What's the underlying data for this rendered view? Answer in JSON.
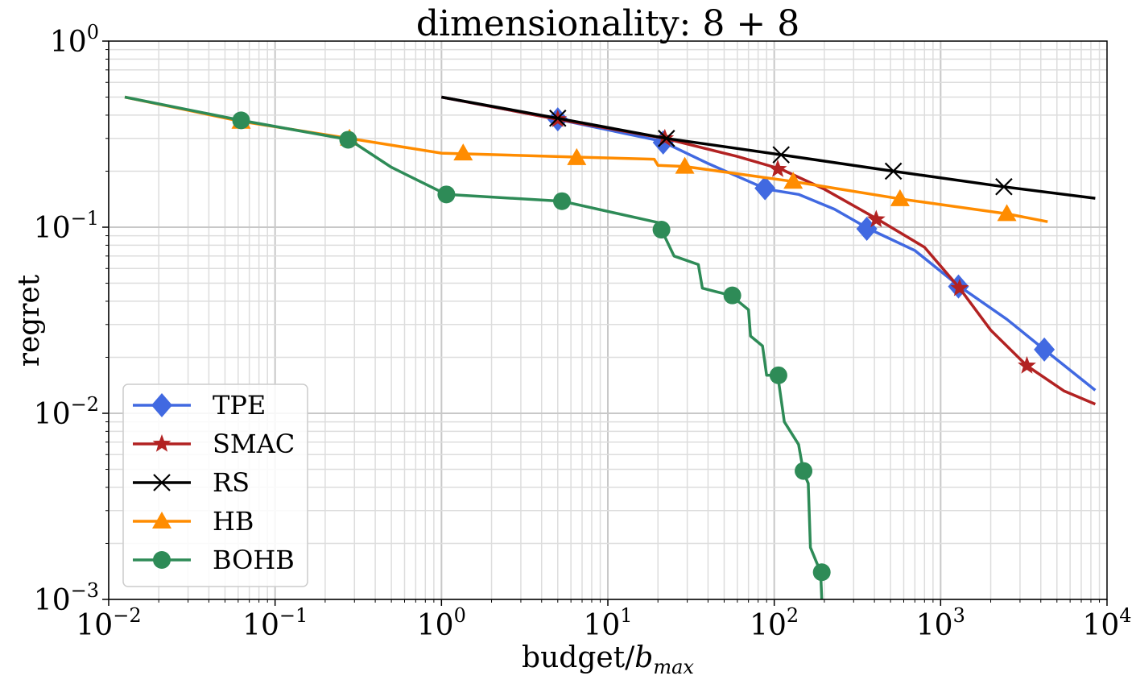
{
  "chart_data": {
    "type": "line",
    "title": "dimensionality: 8 + 8",
    "xlabel": "budget/",
    "xlabel_sub": "max",
    "xlabel_var": "b",
    "ylabel": "regret",
    "xscale": "log",
    "yscale": "log",
    "xlim": [
      0.01,
      10000
    ],
    "ylim": [
      0.001,
      1
    ],
    "x_ticks": [
      {
        "base": "10",
        "exp": "−2"
      },
      {
        "base": "10",
        "exp": "−1"
      },
      {
        "base": "10",
        "exp": "0"
      },
      {
        "base": "10",
        "exp": "1"
      },
      {
        "base": "10",
        "exp": "2"
      },
      {
        "base": "10",
        "exp": "3"
      },
      {
        "base": "10",
        "exp": "4"
      }
    ],
    "y_ticks": [
      {
        "base": "10",
        "exp": "−3"
      },
      {
        "base": "10",
        "exp": "−2"
      },
      {
        "base": "10",
        "exp": "−1"
      },
      {
        "base": "10",
        "exp": "0"
      }
    ],
    "grid": true,
    "legend_position": "lower-left",
    "series": [
      {
        "name": "TPE",
        "color": "#4169e1",
        "marker": "diamond",
        "x": [
          1,
          5,
          21,
          40,
          90,
          140,
          230,
          370,
          700,
          1300,
          2500,
          4200,
          8500
        ],
        "y": [
          0.5,
          0.38,
          0.29,
          0.22,
          0.16,
          0.15,
          0.125,
          0.098,
          0.075,
          0.048,
          0.032,
          0.022,
          0.0133
        ],
        "markers_x": [
          5,
          21.5,
          88,
          360,
          1280,
          4200
        ],
        "markers_y": [
          0.38,
          0.285,
          0.162,
          0.098,
          0.048,
          0.022
        ]
      },
      {
        "name": "SMAC",
        "color": "#b22222",
        "marker": "star",
        "x": [
          1,
          5,
          22,
          60,
          110,
          200,
          420,
          800,
          1300,
          2000,
          3300,
          5500,
          8500
        ],
        "y": [
          0.5,
          0.38,
          0.3,
          0.24,
          0.205,
          0.16,
          0.11,
          0.078,
          0.047,
          0.028,
          0.018,
          0.0132,
          0.0112
        ],
        "markers_x": [
          5,
          22,
          105,
          410,
          1300,
          3300
        ],
        "markers_y": [
          0.38,
          0.3,
          0.205,
          0.11,
          0.047,
          0.018
        ]
      },
      {
        "name": "RS",
        "color": "#000000",
        "marker": "x",
        "x": [
          1,
          5,
          22.5,
          110,
          520,
          2400,
          8500
        ],
        "y": [
          0.5,
          0.385,
          0.3,
          0.245,
          0.2,
          0.165,
          0.143
        ],
        "markers_x": [
          5,
          22.5,
          110,
          520,
          2400
        ],
        "markers_y": [
          0.385,
          0.3,
          0.245,
          0.2,
          0.165
        ]
      },
      {
        "name": "HB",
        "color": "#ff8c00",
        "marker": "triangle",
        "x": [
          0.0125,
          0.0625,
          0.28,
          1.0,
          1.35,
          6.5,
          19,
          20,
          29,
          130,
          570,
          2500,
          4400
        ],
        "y": [
          0.5,
          0.37,
          0.3,
          0.25,
          0.248,
          0.238,
          0.232,
          0.215,
          0.212,
          0.176,
          0.142,
          0.118,
          0.107
        ],
        "markers_x": [
          0.0625,
          0.28,
          1.35,
          6.5,
          29,
          130,
          570,
          2500
        ],
        "markers_y": [
          0.37,
          0.3,
          0.25,
          0.236,
          0.212,
          0.176,
          0.142,
          0.118
        ]
      },
      {
        "name": "BOHB",
        "color": "#2e8b57",
        "marker": "circle",
        "x": [
          0.0125,
          0.0625,
          0.28,
          0.5,
          1.07,
          5.3,
          20,
          21,
          25,
          35,
          37,
          55,
          70,
          72,
          85,
          90,
          105,
          115,
          140,
          150,
          160,
          165,
          190,
          193
        ],
        "y": [
          0.5,
          0.375,
          0.295,
          0.21,
          0.15,
          0.138,
          0.106,
          0.097,
          0.07,
          0.063,
          0.047,
          0.043,
          0.036,
          0.026,
          0.023,
          0.016,
          0.016,
          0.009,
          0.0068,
          0.0048,
          0.0042,
          0.0019,
          0.0014,
          0.001
        ],
        "markers_x": [
          0.0625,
          0.275,
          1.07,
          5.3,
          21,
          56,
          106,
          150,
          193
        ],
        "markers_y": [
          0.375,
          0.295,
          0.15,
          0.138,
          0.097,
          0.043,
          0.016,
          0.0049,
          0.0014
        ]
      }
    ]
  }
}
